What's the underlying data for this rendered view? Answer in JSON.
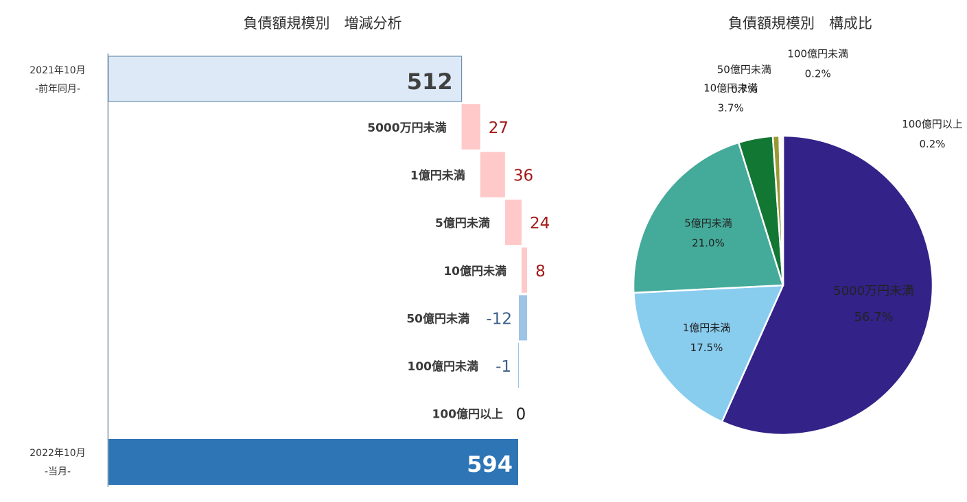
{
  "chart_data": [
    {
      "type": "bar",
      "subtype": "waterfall",
      "title": "負債額規模別　増減分析",
      "start": {
        "label_line1": "2021年10月",
        "label_line2": "-前年同月-",
        "value": 512,
        "color": "#dde9f7"
      },
      "categories": [
        "5000万円未満",
        "1億円未満",
        "5億円未満",
        "10億円未満",
        "50億円未満",
        "100億円未満",
        "100億円以上"
      ],
      "values": [
        27,
        36,
        24,
        8,
        -12,
        -1,
        0
      ],
      "value_labels": [
        "27",
        "36",
        "24",
        "8",
        "-12",
        "-1",
        "0"
      ],
      "end": {
        "label_line1": "2022年10月",
        "label_line2": "-当月-",
        "value": 594,
        "color": "#2e75b6"
      },
      "increase_color": "#ffc9c9",
      "increase_text_color": "#a31919",
      "decrease_color": "#9dc3e6",
      "decrease_text_color": "#3b5f8a",
      "zero_text_color": "#222222",
      "xlim": [
        0,
        620
      ]
    },
    {
      "type": "pie",
      "title": "負債額規模別　構成比",
      "labels": [
        "5000万円未満",
        "1億円未満",
        "5億円未満",
        "10億円未満",
        "50億円未満",
        "100億円未満",
        "100億円以上"
      ],
      "values": [
        56.7,
        17.5,
        21.0,
        3.7,
        0.7,
        0.2,
        0.2
      ],
      "value_labels": [
        "56.7%",
        "17.5%",
        "21.0%",
        "3.7%",
        "0.7%",
        "0.2%",
        "0.2%"
      ],
      "colors": [
        "#332288",
        "#88ccee",
        "#44aa99",
        "#117733",
        "#999933",
        "#ddcc77",
        "#cc6677"
      ],
      "label_colors": [
        "#ffffff",
        "#222222",
        "#222222",
        "#222222",
        "#222222",
        "#222222",
        "#222222"
      ]
    }
  ]
}
